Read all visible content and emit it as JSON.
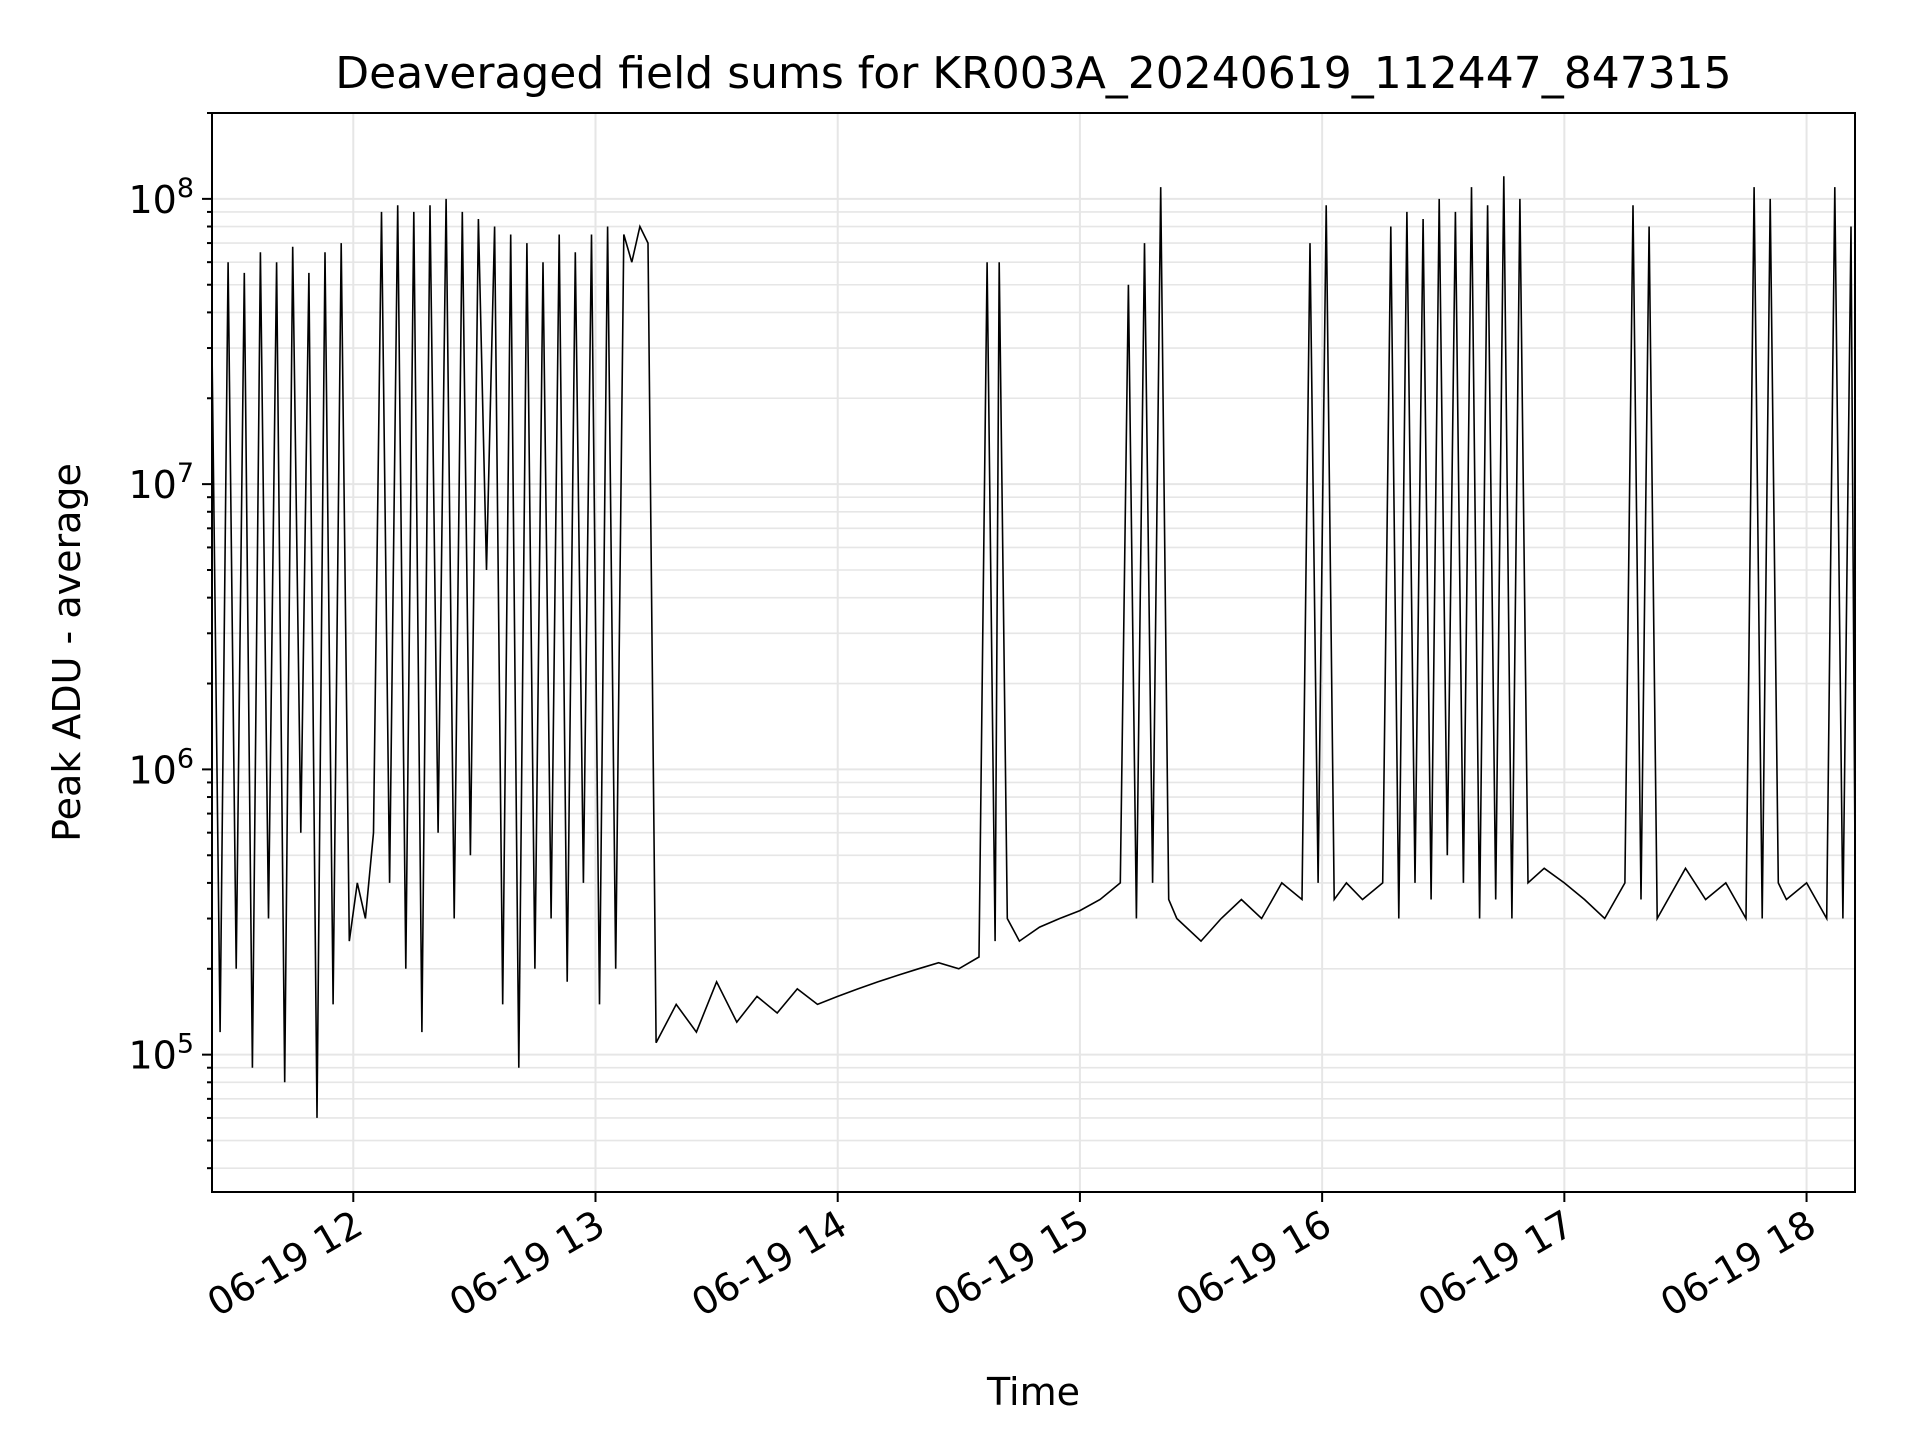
{
  "chart_data": {
    "type": "line",
    "title": "Deaveraged field sums for KR003A_20240619_112447_847315",
    "xlabel": "Time",
    "ylabel": "Peak ADU - average",
    "yscale": "log",
    "xlim": [
      "06-19 11:25",
      "06-19 18:12"
    ],
    "ylim": [
      33000,
      200000000
    ],
    "x_ticks": [
      "06-19 12",
      "06-19 13",
      "06-19 14",
      "06-19 15",
      "06-19 16",
      "06-19 17",
      "06-19 18"
    ],
    "y_ticks": [
      {
        "base": "10",
        "exp": "5",
        "value": 100000
      },
      {
        "base": "10",
        "exp": "6",
        "value": 1000000
      },
      {
        "base": "10",
        "exp": "7",
        "value": 10000000
      },
      {
        "base": "10",
        "exp": "8",
        "value": 100000000
      }
    ],
    "grid": true,
    "line_color": "#000000",
    "series": [
      {
        "values": [
          [
            "06-19 11:25",
            30000000
          ],
          [
            "06-19 11:27",
            120000
          ],
          [
            "06-19 11:29",
            60000000
          ],
          [
            "06-19 11:31",
            200000
          ],
          [
            "06-19 11:33",
            55000000
          ],
          [
            "06-19 11:35",
            90000
          ],
          [
            "06-19 11:37",
            65000000
          ],
          [
            "06-19 11:39",
            300000
          ],
          [
            "06-19 11:41",
            60000000
          ],
          [
            "06-19 11:43",
            80000
          ],
          [
            "06-19 11:45",
            68000000
          ],
          [
            "06-19 11:47",
            600000
          ],
          [
            "06-19 11:49",
            55000000
          ],
          [
            "06-19 11:51",
            60000
          ],
          [
            "06-19 11:53",
            65000000
          ],
          [
            "06-19 11:55",
            150000
          ],
          [
            "06-19 11:57",
            70000000
          ],
          [
            "06-19 11:59",
            250000
          ],
          [
            "06-19 12:01",
            400000
          ],
          [
            "06-19 12:03",
            300000
          ],
          [
            "06-19 12:05",
            600000
          ],
          [
            "06-19 12:07",
            90000000
          ],
          [
            "06-19 12:09",
            400000
          ],
          [
            "06-19 12:11",
            95000000
          ],
          [
            "06-19 12:13",
            200000
          ],
          [
            "06-19 12:15",
            90000000
          ],
          [
            "06-19 12:17",
            120000
          ],
          [
            "06-19 12:19",
            95000000
          ],
          [
            "06-19 12:21",
            600000
          ],
          [
            "06-19 12:23",
            100000000
          ],
          [
            "06-19 12:25",
            300000
          ],
          [
            "06-19 12:27",
            90000000
          ],
          [
            "06-19 12:29",
            500000
          ],
          [
            "06-19 12:31",
            85000000
          ],
          [
            "06-19 12:33",
            5000000
          ],
          [
            "06-19 12:35",
            80000000
          ],
          [
            "06-19 12:37",
            150000
          ],
          [
            "06-19 12:39",
            75000000
          ],
          [
            "06-19 12:41",
            90000
          ],
          [
            "06-19 12:43",
            70000000
          ],
          [
            "06-19 12:45",
            200000
          ],
          [
            "06-19 12:47",
            60000000
          ],
          [
            "06-19 12:49",
            300000
          ],
          [
            "06-19 12:51",
            75000000
          ],
          [
            "06-19 12:53",
            180000
          ],
          [
            "06-19 12:55",
            65000000
          ],
          [
            "06-19 12:57",
            400000
          ],
          [
            "06-19 12:59",
            75000000
          ],
          [
            "06-19 13:01",
            150000
          ],
          [
            "06-19 13:03",
            80000000
          ],
          [
            "06-19 13:05",
            200000
          ],
          [
            "06-19 13:07",
            75000000
          ],
          [
            "06-19 13:09",
            60000000
          ],
          [
            "06-19 13:11",
            80000000
          ],
          [
            "06-19 13:13",
            70000000
          ],
          [
            "06-19 13:15",
            110000
          ],
          [
            "06-19 13:20",
            150000
          ],
          [
            "06-19 13:25",
            120000
          ],
          [
            "06-19 13:30",
            180000
          ],
          [
            "06-19 13:35",
            130000
          ],
          [
            "06-19 13:40",
            160000
          ],
          [
            "06-19 13:45",
            140000
          ],
          [
            "06-19 13:50",
            170000
          ],
          [
            "06-19 13:55",
            150000
          ],
          [
            "06-19 14:00",
            160000
          ],
          [
            "06-19 14:05",
            170000
          ],
          [
            "06-19 14:10",
            180000
          ],
          [
            "06-19 14:15",
            190000
          ],
          [
            "06-19 14:20",
            200000
          ],
          [
            "06-19 14:25",
            210000
          ],
          [
            "06-19 14:30",
            200000
          ],
          [
            "06-19 14:35",
            220000
          ],
          [
            "06-19 14:37",
            60000000
          ],
          [
            "06-19 14:39",
            250000
          ],
          [
            "06-19 14:40",
            60000000
          ],
          [
            "06-19 14:42",
            300000
          ],
          [
            "06-19 14:45",
            250000
          ],
          [
            "06-19 14:50",
            280000
          ],
          [
            "06-19 14:55",
            300000
          ],
          [
            "06-19 15:00",
            320000
          ],
          [
            "06-19 15:05",
            350000
          ],
          [
            "06-19 15:10",
            400000
          ],
          [
            "06-19 15:12",
            50000000
          ],
          [
            "06-19 15:14",
            300000
          ],
          [
            "06-19 15:16",
            70000000
          ],
          [
            "06-19 15:18",
            400000
          ],
          [
            "06-19 15:20",
            110000000
          ],
          [
            "06-19 15:22",
            350000
          ],
          [
            "06-19 15:24",
            300000
          ],
          [
            "06-19 15:30",
            250000
          ],
          [
            "06-19 15:35",
            300000
          ],
          [
            "06-19 15:40",
            350000
          ],
          [
            "06-19 15:45",
            300000
          ],
          [
            "06-19 15:50",
            400000
          ],
          [
            "06-19 15:55",
            350000
          ],
          [
            "06-19 15:57",
            70000000
          ],
          [
            "06-19 15:59",
            400000
          ],
          [
            "06-19 16:01",
            95000000
          ],
          [
            "06-19 16:03",
            350000
          ],
          [
            "06-19 16:06",
            400000
          ],
          [
            "06-19 16:10",
            350000
          ],
          [
            "06-19 16:15",
            400000
          ],
          [
            "06-19 16:17",
            80000000
          ],
          [
            "06-19 16:19",
            300000
          ],
          [
            "06-19 16:21",
            90000000
          ],
          [
            "06-19 16:23",
            400000
          ],
          [
            "06-19 16:25",
            85000000
          ],
          [
            "06-19 16:27",
            350000
          ],
          [
            "06-19 16:29",
            100000000
          ],
          [
            "06-19 16:31",
            500000
          ],
          [
            "06-19 16:33",
            90000000
          ],
          [
            "06-19 16:35",
            400000
          ],
          [
            "06-19 16:37",
            110000000
          ],
          [
            "06-19 16:39",
            300000
          ],
          [
            "06-19 16:41",
            95000000
          ],
          [
            "06-19 16:43",
            350000
          ],
          [
            "06-19 16:45",
            120000000
          ],
          [
            "06-19 16:47",
            300000
          ],
          [
            "06-19 16:49",
            100000000
          ],
          [
            "06-19 16:51",
            400000
          ],
          [
            "06-19 16:55",
            450000
          ],
          [
            "06-19 17:00",
            400000
          ],
          [
            "06-19 17:05",
            350000
          ],
          [
            "06-19 17:10",
            300000
          ],
          [
            "06-19 17:15",
            400000
          ],
          [
            "06-19 17:17",
            95000000
          ],
          [
            "06-19 17:19",
            350000
          ],
          [
            "06-19 17:21",
            80000000
          ],
          [
            "06-19 17:23",
            300000
          ],
          [
            "06-19 17:30",
            450000
          ],
          [
            "06-19 17:35",
            350000
          ],
          [
            "06-19 17:40",
            400000
          ],
          [
            "06-19 17:45",
            300000
          ],
          [
            "06-19 17:47",
            110000000
          ],
          [
            "06-19 17:49",
            300000
          ],
          [
            "06-19 17:51",
            100000000
          ],
          [
            "06-19 17:53",
            400000
          ],
          [
            "06-19 17:55",
            350000
          ],
          [
            "06-19 18:00",
            400000
          ],
          [
            "06-19 18:05",
            300000
          ],
          [
            "06-19 18:07",
            110000000
          ],
          [
            "06-19 18:09",
            300000
          ],
          [
            "06-19 18:11",
            80000000
          ],
          [
            "06-19 18:12",
            500000
          ]
        ]
      }
    ]
  }
}
